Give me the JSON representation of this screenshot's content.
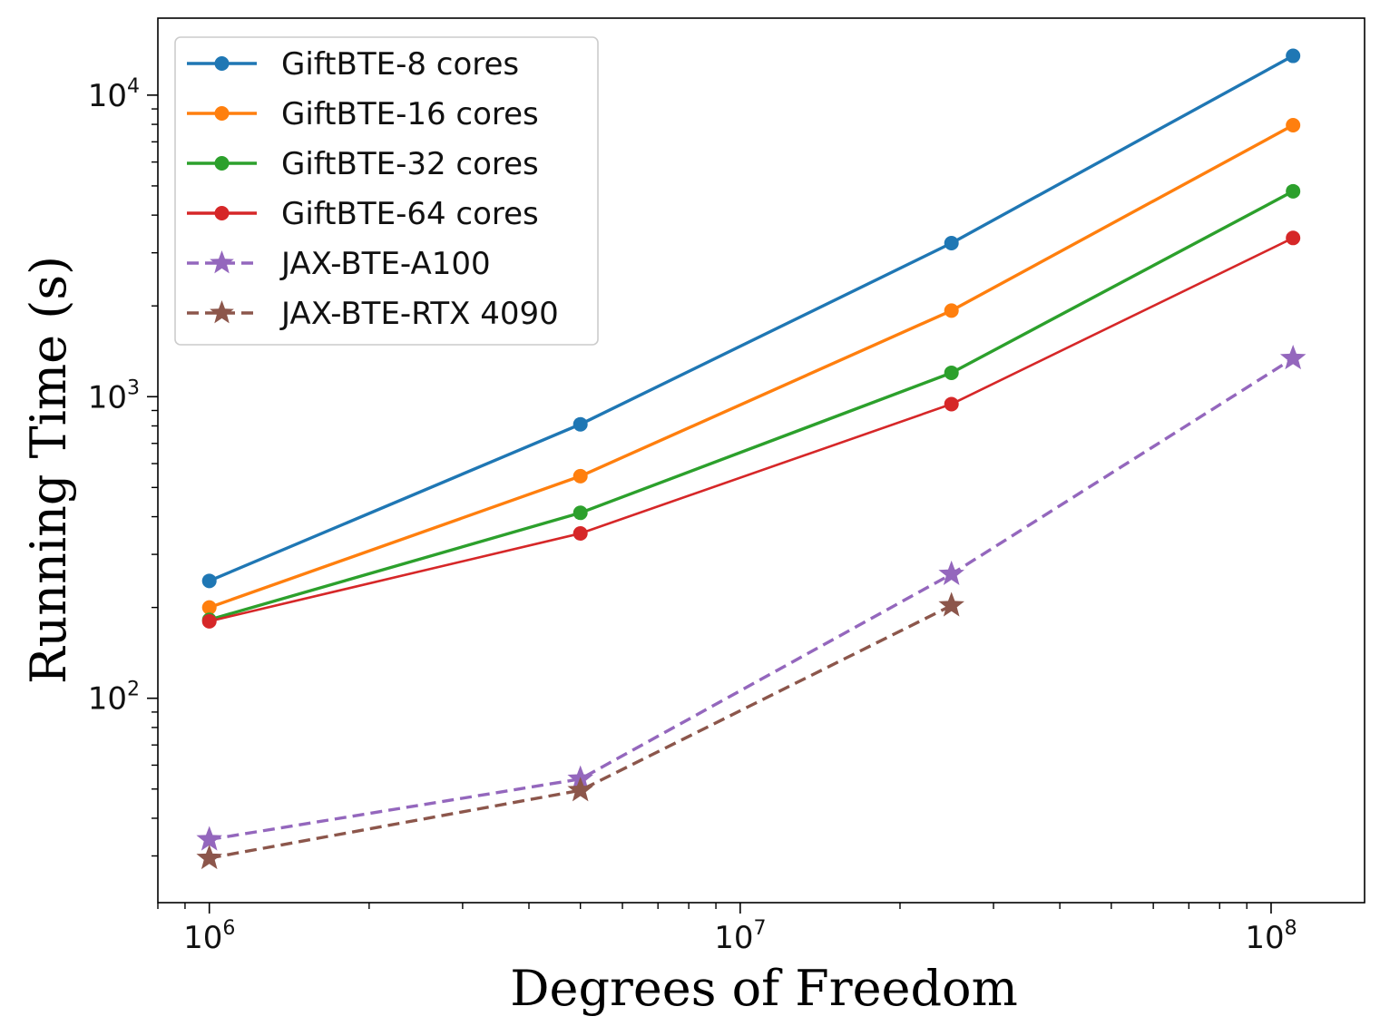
{
  "chart_data": {
    "type": "line",
    "xlabel": "Degrees of Freedom",
    "ylabel": "Running Time (s)",
    "xscale": "log",
    "yscale": "log",
    "xlim": [
      800000,
      150000000
    ],
    "ylim": [
      21,
      18000
    ],
    "x_ticks": [
      {
        "value": 1000000,
        "base": "10",
        "exp": "6"
      },
      {
        "value": 10000000,
        "base": "10",
        "exp": "7"
      },
      {
        "value": 100000000,
        "base": "10",
        "exp": "8"
      }
    ],
    "y_ticks": [
      {
        "value": 100,
        "base": "10",
        "exp": "2"
      },
      {
        "value": 1000,
        "base": "10",
        "exp": "3"
      },
      {
        "value": 10000,
        "base": "10",
        "exp": "4"
      }
    ],
    "grid": false,
    "legend_position": "upper-left",
    "series": [
      {
        "name": "GiftBTE-8 cores",
        "color": "#1f77b4",
        "marker": "circle",
        "dash": "solid",
        "x": [
          1000000,
          5000000,
          25000000,
          110000000
        ],
        "y": [
          245,
          810,
          3230,
          13500
        ]
      },
      {
        "name": "GiftBTE-16 cores",
        "color": "#ff7f0e",
        "marker": "circle",
        "dash": "solid",
        "x": [
          1000000,
          5000000,
          25000000,
          110000000
        ],
        "y": [
          200,
          545,
          1930,
          7950
        ]
      },
      {
        "name": "GiftBTE-32 cores",
        "color": "#2ca02c",
        "marker": "circle",
        "dash": "solid",
        "x": [
          1000000,
          5000000,
          25000000,
          110000000
        ],
        "y": [
          182,
          412,
          1200,
          4800
        ]
      },
      {
        "name": "GiftBTE-64 cores",
        "color": "#d62728",
        "marker": "circle",
        "dash": "solid",
        "x": [
          1000000,
          5000000,
          25000000,
          110000000
        ],
        "y": [
          180,
          352,
          945,
          3360
        ]
      },
      {
        "name": "JAX-BTE-A100",
        "color": "#9467bd",
        "marker": "star",
        "dash": "dashed",
        "x": [
          1000000,
          5000000,
          25000000,
          110000000
        ],
        "y": [
          34,
          54,
          258,
          1340
        ]
      },
      {
        "name": "JAX-BTE-RTX 4090",
        "color": "#8c564b",
        "marker": "star",
        "dash": "dashed",
        "x": [
          1000000,
          5000000,
          25000000
        ],
        "y": [
          29.5,
          49.5,
          203
        ]
      }
    ]
  }
}
